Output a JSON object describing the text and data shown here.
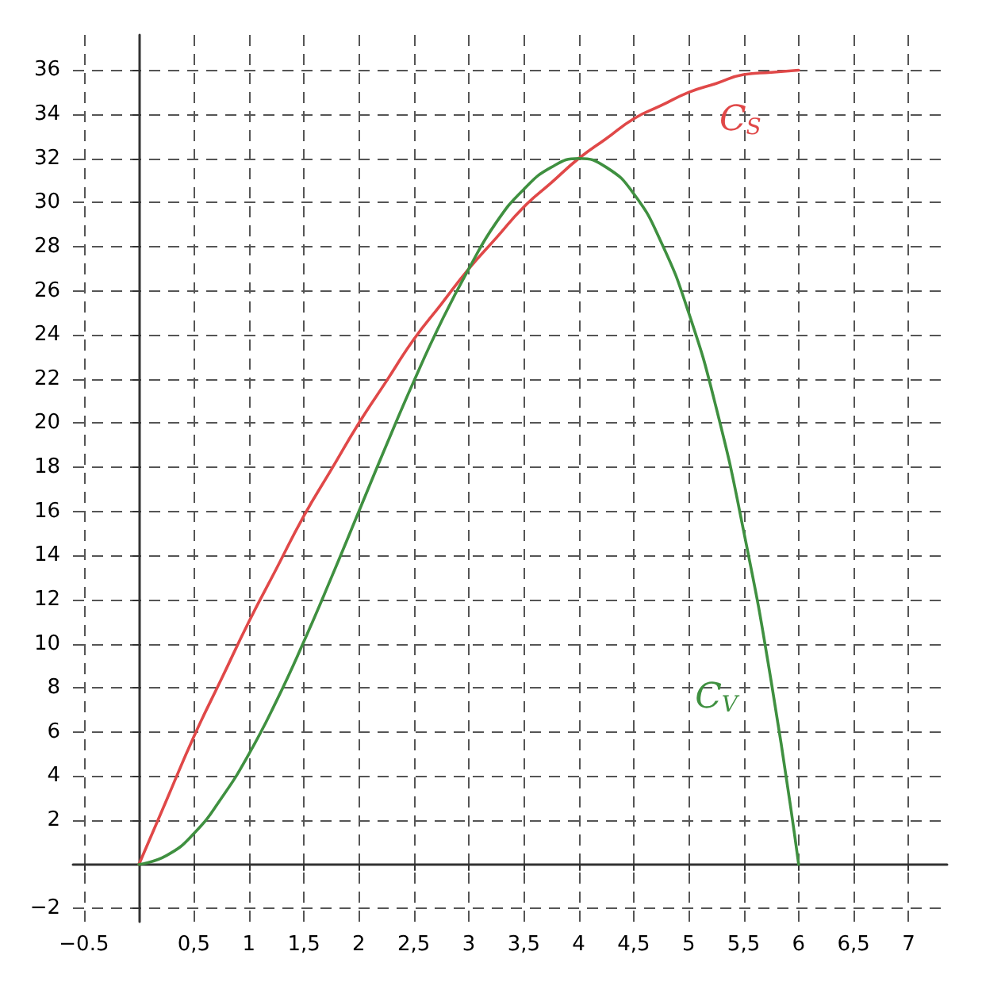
{
  "chart_data": {
    "type": "line",
    "x": [
      0,
      0.25,
      0.5,
      0.75,
      1,
      1.25,
      1.5,
      1.75,
      2,
      2.25,
      2.5,
      2.75,
      3,
      3.25,
      3.5,
      3.75,
      4,
      4.25,
      4.5,
      4.75,
      5,
      5.25,
      5.5,
      5.75,
      6
    ],
    "series": [
      {
        "name": "C$_{S}$",
        "color": "#e04848",
        "values": [
          0,
          2.9,
          5.8,
          8.4,
          11,
          13.4,
          15.8,
          17.9,
          20,
          21.9,
          23.8,
          25.4,
          27,
          28.4,
          29.8,
          30.9,
          32,
          32.9,
          33.8,
          34.4,
          35,
          35.4,
          35.8,
          35.9,
          36
        ]
      },
      {
        "name": "C$_{V}$",
        "color": "#3f9040",
        "values": [
          0,
          0.4,
          1.4,
          3,
          5,
          7.4,
          10.1,
          13,
          16,
          19,
          21.9,
          24.6,
          27,
          29.1,
          30.6,
          31.6,
          32,
          31.6,
          30.4,
          28.2,
          25,
          20.7,
          15.1,
          8.3,
          0
        ]
      }
    ],
    "xlim": [
      -0.6,
      7.35
    ],
    "xticks": [
      {
        "value": -0.5,
        "label": "−0.5"
      },
      {
        "value": 0.5,
        "label": "0,5"
      },
      1,
      {
        "value": 1.5,
        "label": "1,5"
      },
      2,
      {
        "value": 2.5,
        "label": "2,5"
      },
      3,
      {
        "value": 3.5,
        "label": "3,5"
      },
      4,
      {
        "value": 4.5,
        "label": "4,5"
      },
      5,
      {
        "value": 5.5,
        "label": "5,5"
      },
      6,
      {
        "value": 6.5,
        "label": "6,5"
      },
      7
    ],
    "ylim": [
      -2.6,
      37.6
    ],
    "yticks": [
      {
        "value": -2,
        "label": "−2"
      },
      2,
      4,
      6,
      8,
      10,
      12,
      14,
      16,
      18,
      20,
      22,
      24,
      26,
      28,
      30,
      32,
      34,
      36
    ],
    "grid": true,
    "marker": "none",
    "line_style": "solid",
    "legend": false
  }
}
